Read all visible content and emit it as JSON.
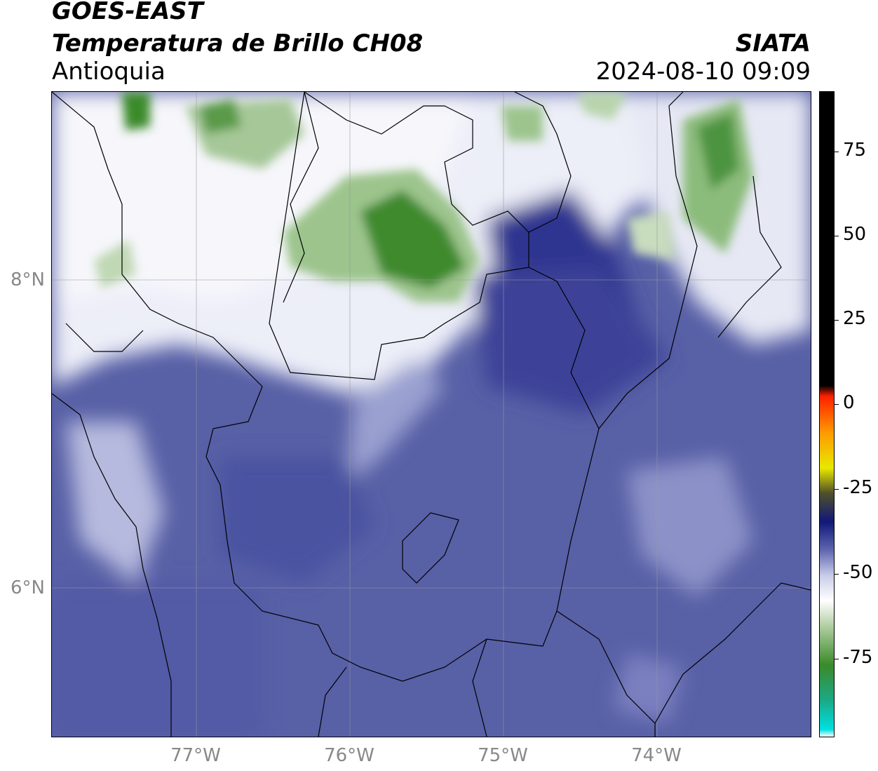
{
  "header": {
    "satellite": "GOES-EAST",
    "product": "Temperatura de Brillo CH08",
    "organization": "SIATA",
    "region": "Antioquia",
    "timestamp": "2024-08-10 09:09"
  },
  "map": {
    "lat_labels": [
      "8°N",
      "6°N"
    ],
    "lon_labels": [
      "77°W",
      "76°W",
      "75°W",
      "74°W"
    ]
  },
  "colorbar": {
    "tick_labels": [
      "75",
      "50",
      "25",
      "0",
      "-25",
      "-50",
      "-75"
    ],
    "stops": [
      {
        "value": -90,
        "color": "#ffffff"
      },
      {
        "value": -88,
        "color": "#00e0e0"
      },
      {
        "value": -80,
        "color": "#1aaa88"
      },
      {
        "value": -70,
        "color": "#3a8a2a"
      },
      {
        "value": -60,
        "color": "#a8c898"
      },
      {
        "value": -52,
        "color": "#ffffff"
      },
      {
        "value": -45,
        "color": "#c8cce8"
      },
      {
        "value": -38,
        "color": "#6068b0"
      },
      {
        "value": -30,
        "color": "#101878"
      },
      {
        "value": -22,
        "color": "#50502a"
      },
      {
        "value": -15,
        "color": "#e8e800"
      },
      {
        "value": -5,
        "color": "#ff9800"
      },
      {
        "value": 5,
        "color": "#ff2000"
      },
      {
        "value": 8,
        "color": "#000000"
      },
      {
        "value": 90,
        "color": "#000000"
      }
    ]
  },
  "colors": {
    "cold_green": "#3a8a2a",
    "mid_blue": "#5a63a8",
    "dark_blue": "#2a2f8a",
    "white_cloud": "#f4f4fa"
  }
}
